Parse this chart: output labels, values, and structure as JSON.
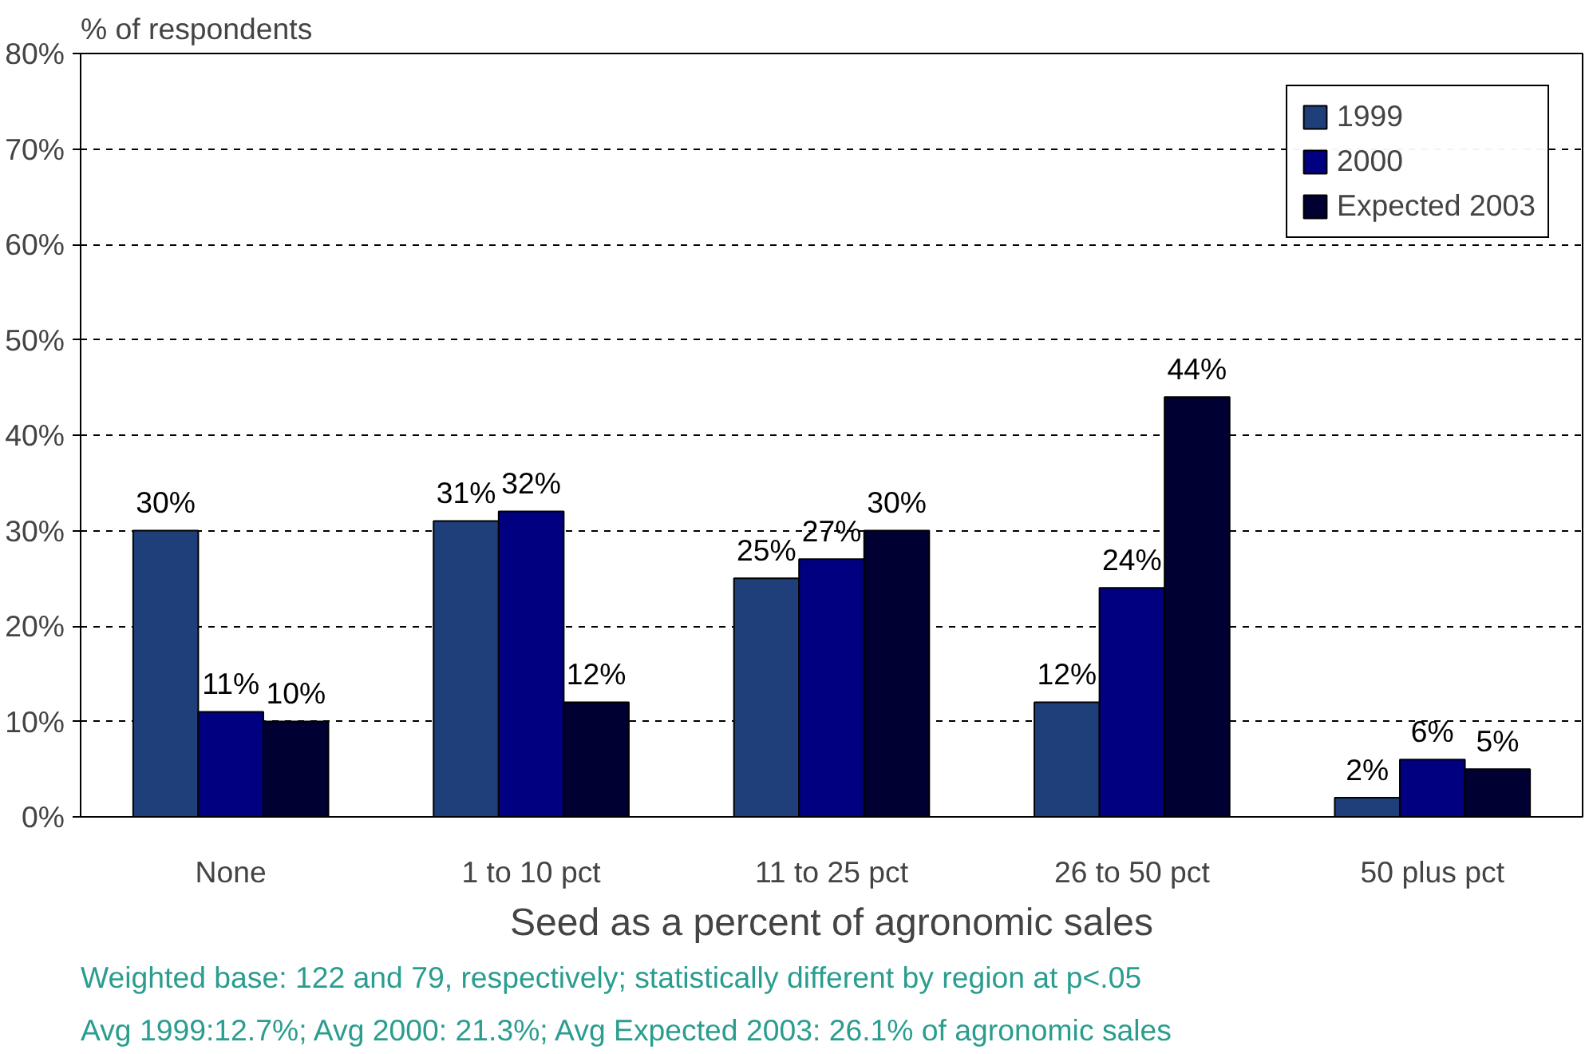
{
  "chart_data": {
    "type": "bar",
    "xlabel": "Seed as a percent of agronomic sales",
    "ylabel": "% of respondents",
    "categories": [
      "None",
      "1 to 10 pct",
      "11 to 25 pct",
      "26 to 50 pct",
      "50 plus pct"
    ],
    "series": [
      {
        "name": "1999",
        "color": "#1f3f7a",
        "values": [
          30,
          31,
          25,
          12,
          2
        ],
        "value_labels": [
          "30%",
          "31%",
          "25%",
          "12%",
          "2%"
        ]
      },
      {
        "name": "2000",
        "color": "#000080",
        "values": [
          11,
          32,
          27,
          24,
          6
        ],
        "value_labels": [
          "11%",
          "32%",
          "27%",
          "24%",
          "6%"
        ]
      },
      {
        "name": "Expected 2003",
        "color": "#000033",
        "values": [
          10,
          12,
          30,
          44,
          5
        ],
        "value_labels": [
          "10%",
          "12%",
          "30%",
          "44%",
          "5%"
        ]
      }
    ],
    "ylim": [
      0,
      80
    ],
    "yticks": [
      {
        "value": 0,
        "label": "0%"
      },
      {
        "value": 10,
        "label": "10%"
      },
      {
        "value": 20,
        "label": "20%"
      },
      {
        "value": 30,
        "label": "30%"
      },
      {
        "value": 40,
        "label": "40%"
      },
      {
        "value": 50,
        "label": "50%"
      },
      {
        "value": 60,
        "label": "60%"
      },
      {
        "value": 70,
        "label": "70%"
      },
      {
        "value": 80,
        "label": "80%"
      }
    ],
    "grid": "y",
    "legend": "top right",
    "annotations": [
      "Weighted base:  122 and 79, respectively; statistically different by region at p<.05",
      "Avg 1999:12.7%; Avg 2000: 21.3%; Avg Expected 2003: 26.1% of agronomic sales"
    ]
  }
}
